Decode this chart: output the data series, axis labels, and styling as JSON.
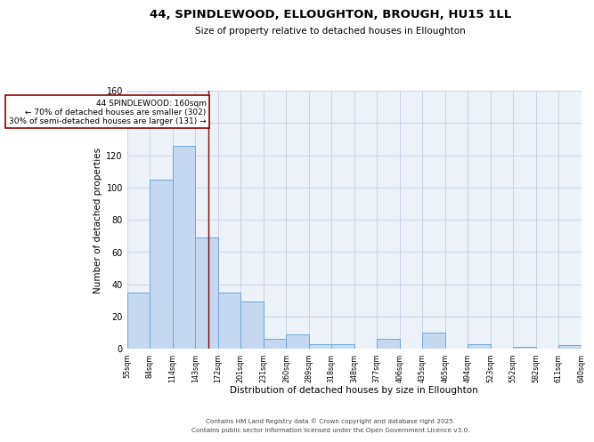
{
  "title": "44, SPINDLEWOOD, ELLOUGHTON, BROUGH, HU15 1LL",
  "subtitle": "Size of property relative to detached houses in Elloughton",
  "xlabel": "Distribution of detached houses by size in Elloughton",
  "ylabel": "Number of detached properties",
  "bar_left_edges": [
    55,
    84,
    114,
    143,
    172,
    201,
    231,
    260,
    289,
    318,
    348,
    377,
    406,
    435,
    465,
    494,
    523,
    552,
    582,
    611
  ],
  "bar_widths": [
    29,
    30,
    29,
    29,
    29,
    30,
    29,
    29,
    29,
    30,
    29,
    29,
    29,
    30,
    29,
    29,
    29,
    30,
    29,
    29
  ],
  "bar_heights": [
    35,
    105,
    126,
    69,
    35,
    29,
    6,
    9,
    3,
    3,
    0,
    6,
    0,
    10,
    0,
    3,
    0,
    1,
    0,
    2
  ],
  "x_tick_labels": [
    "55sqm",
    "84sqm",
    "114sqm",
    "143sqm",
    "172sqm",
    "201sqm",
    "231sqm",
    "260sqm",
    "289sqm",
    "318sqm",
    "348sqm",
    "377sqm",
    "406sqm",
    "435sqm",
    "465sqm",
    "494sqm",
    "523sqm",
    "552sqm",
    "582sqm",
    "611sqm",
    "640sqm"
  ],
  "bar_color": "#c5d8f0",
  "bar_edge_color": "#6fa8d5",
  "vline_x": 160,
  "vline_color": "#8b0000",
  "annotation_line1": "44 SPINDLEWOOD: 160sqm",
  "annotation_line2": "← 70% of detached houses are smaller (302)",
  "annotation_line3": "30% of semi-detached houses are larger (131) →",
  "annotation_box_color": "white",
  "annotation_box_edge": "#8b0000",
  "ylim": [
    0,
    160
  ],
  "yticks": [
    0,
    20,
    40,
    60,
    80,
    100,
    120,
    140,
    160
  ],
  "grid_color": "#c8d4e8",
  "bg_color": "#edf2f9",
  "footer_line1": "Contains HM Land Registry data © Crown copyright and database right 2025.",
  "footer_line2": "Contains public sector information licensed under the Open Government Licence v3.0."
}
